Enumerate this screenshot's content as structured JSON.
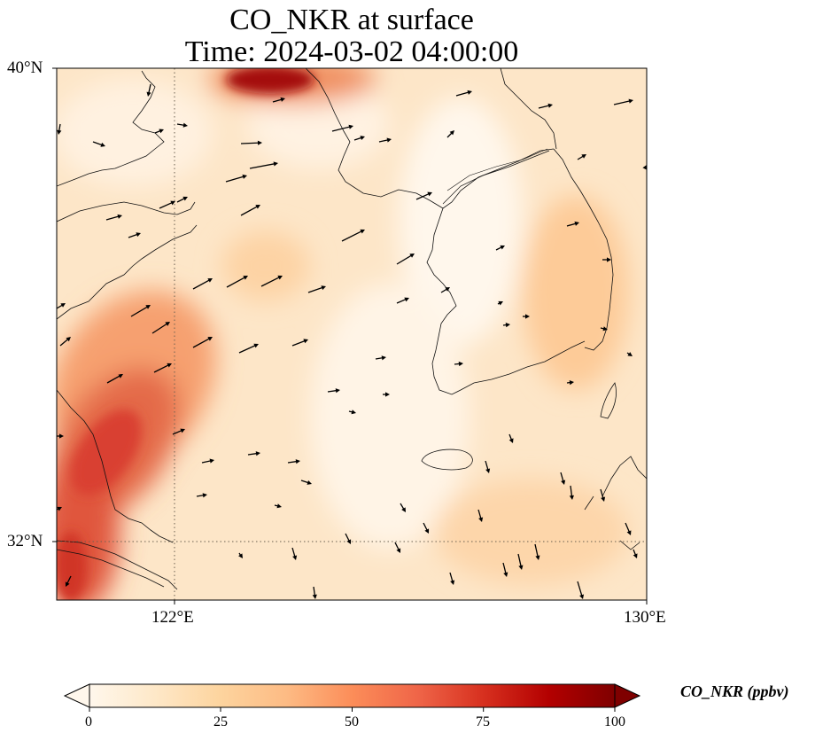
{
  "title": {
    "line1": "CO_NKR at surface",
    "line2": "Time: 2024-03-02 04:00:00"
  },
  "axes": {
    "lat_labels": [
      "40°N",
      "32°N"
    ],
    "lon_labels": [
      "122°E",
      "130°E"
    ]
  },
  "colorbar": {
    "label": "CO_NKR (ppbv)",
    "ticks": [
      "0",
      "25",
      "50",
      "75",
      "100"
    ],
    "range": [
      0,
      100
    ],
    "extend": "both",
    "colormap": "OrRd",
    "colors": [
      "#fff7ec",
      "#fee8c8",
      "#fdd49e",
      "#fdbb84",
      "#fc8d59",
      "#ef6548",
      "#d7301f",
      "#b30000",
      "#7f0000"
    ]
  },
  "chart_data": {
    "type": "heatmap",
    "variable": "CO_NKR",
    "units": "ppbv",
    "level": "surface",
    "time": "2024-03-02 04:00:00",
    "lon_range": [
      120,
      130
    ],
    "lat_range": [
      31,
      40
    ],
    "gridlines": {
      "lon": [
        122,
        130
      ],
      "lat": [
        32,
        40
      ],
      "style": "dotted"
    },
    "hotspots": [
      {
        "region": "north edge near 124°E, 40°N",
        "value": 95
      },
      {
        "region": "southwest band 120–122.5°E, 32–35°N",
        "value": 65
      },
      {
        "region": "near 120.2°E, 31.2°N",
        "value": 75
      }
    ],
    "background_range": [
      2,
      30
    ],
    "wind_vectors": "shown"
  }
}
